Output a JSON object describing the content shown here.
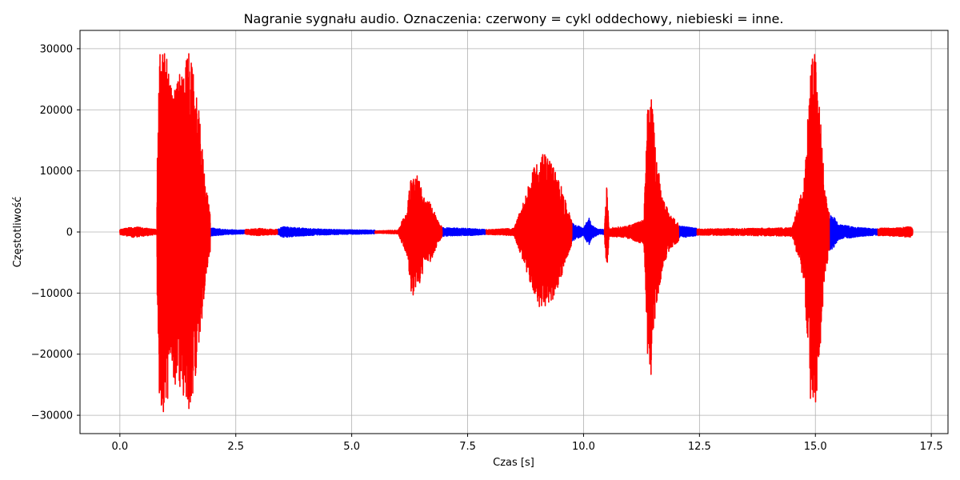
{
  "chart_data": {
    "type": "line",
    "title": "Nagranie sygnału audio. Oznaczenia: czerwony = cykl oddechowy, niebieski = inne.",
    "xlabel": "Czas [s]",
    "ylabel": "Częstotliwość",
    "xlim": [
      -0.86,
      17.86
    ],
    "ylim": [
      -33000,
      33000
    ],
    "xticks": [
      0.0,
      2.5,
      5.0,
      7.5,
      10.0,
      12.5,
      15.0,
      17.5
    ],
    "xtick_labels": [
      "0.0",
      "2.5",
      "5.0",
      "7.5",
      "10.0",
      "12.5",
      "15.0",
      "17.5"
    ],
    "yticks": [
      -30000,
      -20000,
      -10000,
      0,
      10000,
      20000,
      30000
    ],
    "ytick_labels": [
      "−30000",
      "−20000",
      "−10000",
      "0",
      "10000",
      "20000",
      "30000"
    ],
    "grid": true,
    "colors": {
      "breathing": "#ff0000",
      "other": "#0000ff"
    },
    "series": [
      {
        "label": "cykl oddechowy",
        "color": "#ff0000",
        "segments": [
          {
            "start": 0.0,
            "end": 0.8,
            "envelope": [
              [
                0.0,
                400
              ],
              [
                0.3,
                900
              ],
              [
                0.6,
                600
              ],
              [
                0.8,
                400
              ]
            ]
          },
          {
            "start": 0.8,
            "end": 1.95,
            "envelope": [
              [
                0.8,
                9000
              ],
              [
                0.86,
                30000
              ],
              [
                1.0,
                30000
              ],
              [
                1.1,
                24000
              ],
              [
                1.3,
                26000
              ],
              [
                1.5,
                30000
              ],
              [
                1.7,
                20000
              ],
              [
                1.85,
                8000
              ],
              [
                1.95,
                3000
              ]
            ]
          },
          {
            "start": 2.7,
            "end": 3.4,
            "envelope": [
              [
                2.7,
                400
              ],
              [
                3.0,
                600
              ],
              [
                3.4,
                400
              ]
            ]
          },
          {
            "start": 5.5,
            "end": 6.95,
            "envelope": [
              [
                5.5,
                200
              ],
              [
                6.0,
                300
              ],
              [
                6.2,
                4000
              ],
              [
                6.3,
                11000
              ],
              [
                6.45,
                9000
              ],
              [
                6.6,
                5000
              ],
              [
                6.7,
                5000
              ],
              [
                6.85,
                2000
              ],
              [
                6.95,
                800
              ]
            ]
          },
          {
            "start": 7.9,
            "end": 9.75,
            "envelope": [
              [
                7.9,
                400
              ],
              [
                8.5,
                600
              ],
              [
                8.75,
                6000
              ],
              [
                8.95,
                11000
              ],
              [
                9.1,
                13000
              ],
              [
                9.3,
                12000
              ],
              [
                9.5,
                8000
              ],
              [
                9.65,
                4000
              ],
              [
                9.75,
                2000
              ]
            ]
          },
          {
            "start": 10.45,
            "end": 12.05,
            "envelope": [
              [
                10.45,
                600
              ],
              [
                10.5,
                7500
              ],
              [
                10.55,
                700
              ],
              [
                10.9,
                900
              ],
              [
                11.3,
                2000
              ],
              [
                11.38,
                20000
              ],
              [
                11.45,
                24000
              ],
              [
                11.55,
                14000
              ],
              [
                11.7,
                6000
              ],
              [
                11.85,
                3000
              ],
              [
                12.05,
                1500
              ]
            ]
          },
          {
            "start": 12.45,
            "end": 15.3,
            "envelope": [
              [
                12.45,
                500
              ],
              [
                13.5,
                600
              ],
              [
                14.5,
                700
              ],
              [
                14.75,
                8000
              ],
              [
                14.9,
                28000
              ],
              [
                15.0,
                30000
              ],
              [
                15.1,
                20000
              ],
              [
                15.2,
                8000
              ],
              [
                15.3,
                3000
              ]
            ]
          },
          {
            "start": 16.35,
            "end": 17.1,
            "envelope": [
              [
                16.35,
                600
              ],
              [
                16.8,
                700
              ],
              [
                17.05,
                900
              ],
              [
                17.1,
                500
              ]
            ]
          }
        ]
      },
      {
        "label": "inne",
        "color": "#0000ff",
        "segments": [
          {
            "start": 1.95,
            "end": 2.7,
            "envelope": [
              [
                1.95,
                700
              ],
              [
                2.3,
                400
              ],
              [
                2.7,
                300
              ]
            ]
          },
          {
            "start": 3.4,
            "end": 5.5,
            "envelope": [
              [
                3.4,
                400
              ],
              [
                3.5,
                900
              ],
              [
                4.0,
                600
              ],
              [
                4.7,
                400
              ],
              [
                5.5,
                300
              ]
            ]
          },
          {
            "start": 6.95,
            "end": 7.9,
            "envelope": [
              [
                6.95,
                700
              ],
              [
                7.5,
                600
              ],
              [
                7.9,
                400
              ]
            ]
          },
          {
            "start": 9.75,
            "end": 10.45,
            "envelope": [
              [
                9.75,
                1500
              ],
              [
                10.0,
                600
              ],
              [
                10.12,
                2500
              ],
              [
                10.16,
                1200
              ],
              [
                10.3,
                500
              ],
              [
                10.45,
                400
              ]
            ]
          },
          {
            "start": 12.05,
            "end": 12.45,
            "envelope": [
              [
                12.05,
                1000
              ],
              [
                12.45,
                600
              ]
            ]
          },
          {
            "start": 15.3,
            "end": 16.35,
            "envelope": [
              [
                15.3,
                3200
              ],
              [
                15.4,
                2500
              ],
              [
                15.5,
                1200
              ],
              [
                16.0,
                700
              ],
              [
                16.35,
                500
              ]
            ]
          }
        ]
      }
    ]
  }
}
